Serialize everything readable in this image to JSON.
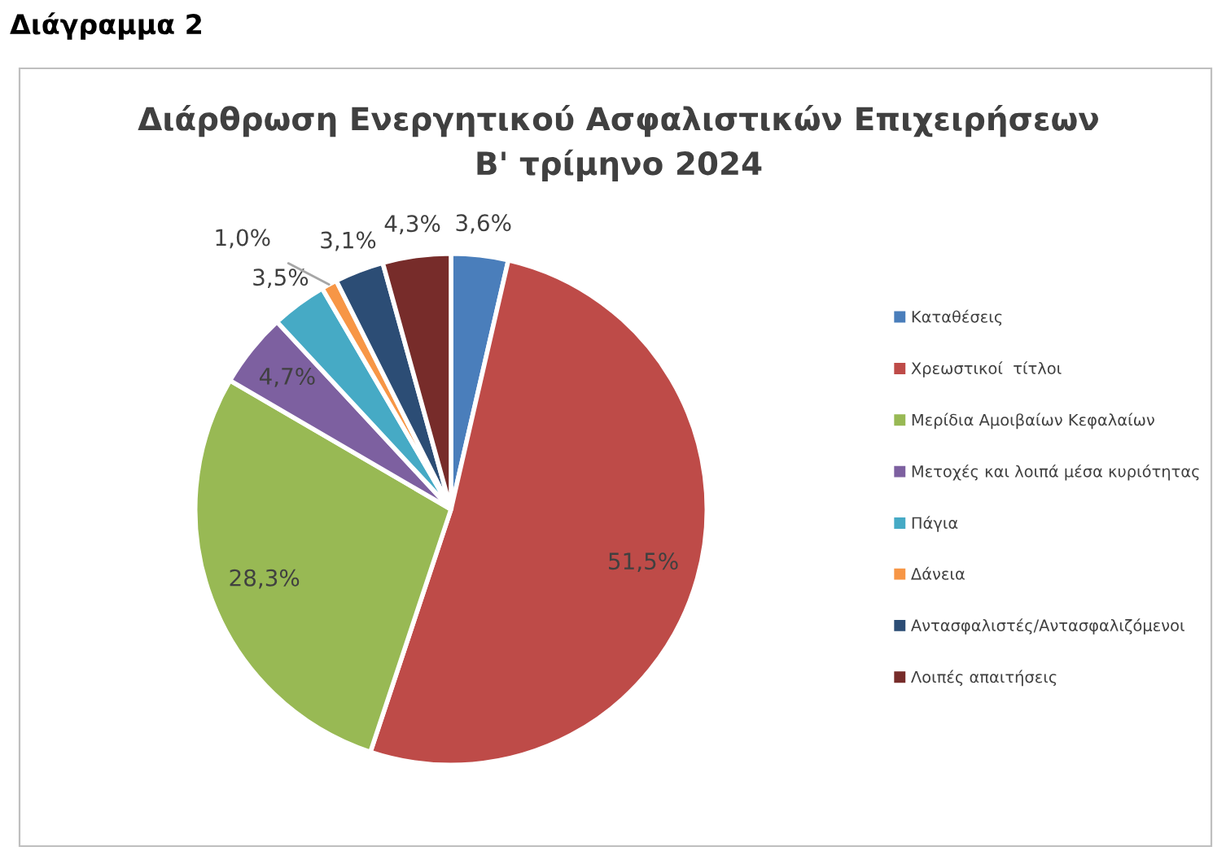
{
  "chart_data": {
    "type": "pie",
    "title": "Διάρθρωση Ενεργητικού Ασφαλιστικών Επιχειρήσεων\nΒ' τρίμηνο 2024",
    "annotations": [
      "Διάγραμμα 2"
    ],
    "categories": [
      "Καταθέσεις",
      "Χρεωστικοί  τίτλοι",
      "Μερίδια Αμοιβαίων Κεφαλαίων",
      "Μετοχές και λοιπά μέσα κυριότητας",
      "Πάγια",
      "Δάνεια",
      "Αντασφαλιστές/Αντασφαλιζόμενοι",
      "Λοιπές απαιτήσεις"
    ],
    "values": [
      3.6,
      51.5,
      28.3,
      4.7,
      3.5,
      1.0,
      3.1,
      4.3
    ],
    "value_labels": [
      "3,6%",
      "51,5%",
      "28,3%",
      "4,7%",
      "3,5%",
      "1,0%",
      "3,1%",
      "4,3%"
    ],
    "colors": [
      "#4a7ebb",
      "#be4b48",
      "#98b954",
      "#7d60a0",
      "#46aac5",
      "#f79646",
      "#2c4d75",
      "#772c2a"
    ],
    "legend": "right"
  }
}
